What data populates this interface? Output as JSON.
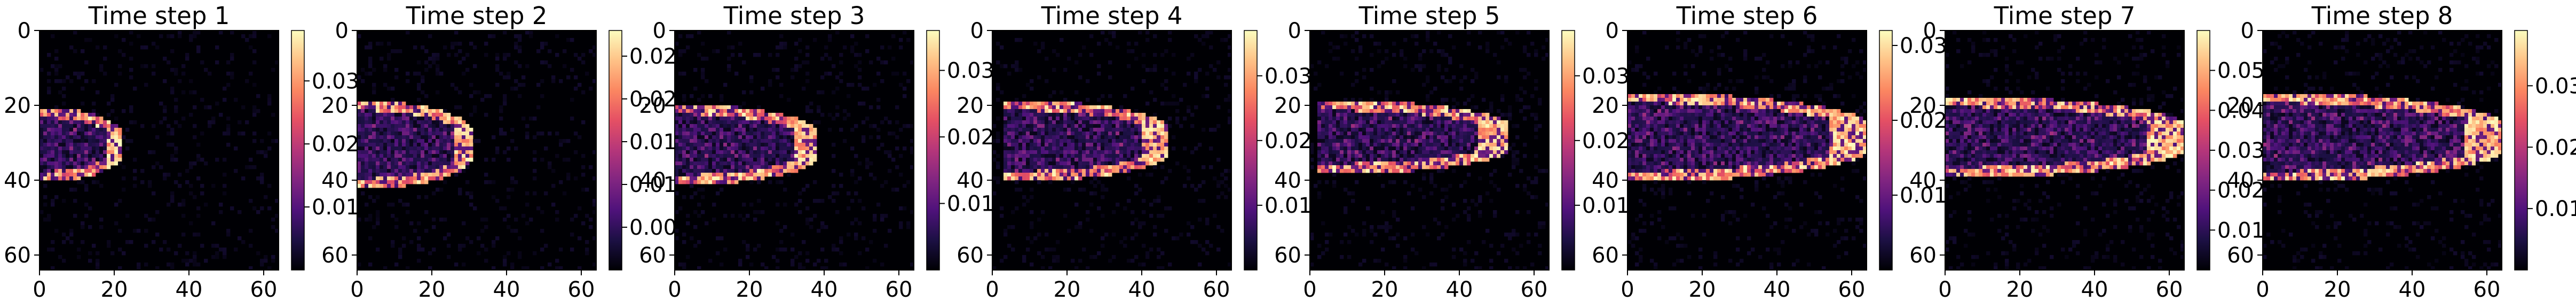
{
  "figure": {
    "panel_count": 8,
    "colormap": "magma",
    "background": "#ffffff"
  },
  "chart_data": [
    {
      "type": "heatmap",
      "title": "Time step 1",
      "xticks": [
        0,
        20,
        40,
        60
      ],
      "yticks": [
        0,
        20,
        40,
        60
      ],
      "xlim": [
        0,
        64
      ],
      "ylim": [
        64,
        0
      ],
      "colorbar": {
        "ticks": [
          "0.01",
          "0.02",
          "0.03"
        ],
        "values": [
          0.01,
          0.02,
          0.03
        ],
        "range": [
          0,
          0.038
        ]
      },
      "feature": {
        "head_x": 21,
        "tail_x": 0,
        "center_y": 30,
        "half_width": 8
      }
    },
    {
      "type": "heatmap",
      "title": "Time step 2",
      "xticks": [
        0,
        20,
        40,
        60
      ],
      "yticks": [
        0,
        20,
        40,
        60
      ],
      "xlim": [
        0,
        64
      ],
      "ylim": [
        64,
        0
      ],
      "colorbar": {
        "ticks": [
          "0.005",
          "0.010",
          "0.015",
          "0.020",
          "0.025"
        ],
        "values": [
          0.005,
          0.01,
          0.015,
          0.02,
          0.025
        ],
        "range": [
          0,
          0.028
        ]
      },
      "feature": {
        "head_x": 30,
        "tail_x": 0,
        "center_y": 30,
        "half_width": 10
      }
    },
    {
      "type": "heatmap",
      "title": "Time step 3",
      "xticks": [
        0,
        20,
        40,
        60
      ],
      "yticks": [
        0,
        20,
        40,
        60
      ],
      "xlim": [
        0,
        64
      ],
      "ylim": [
        64,
        0
      ],
      "colorbar": {
        "ticks": [
          "0.01",
          "0.02",
          "0.03"
        ],
        "values": [
          0.01,
          0.02,
          0.03
        ],
        "range": [
          0,
          0.036
        ]
      },
      "feature": {
        "head_x": 37,
        "tail_x": 0,
        "center_y": 30,
        "half_width": 9
      }
    },
    {
      "type": "heatmap",
      "title": "Time step 4",
      "xticks": [
        0,
        20,
        40,
        60
      ],
      "yticks": [
        0,
        20,
        40,
        60
      ],
      "xlim": [
        0,
        64
      ],
      "ylim": [
        64,
        0
      ],
      "colorbar": {
        "ticks": [
          "0.01",
          "0.02",
          "0.03"
        ],
        "values": [
          0.01,
          0.02,
          0.03
        ],
        "range": [
          0,
          0.037
        ]
      },
      "feature": {
        "head_x": 46,
        "tail_x": 5,
        "center_y": 29,
        "half_width": 9
      }
    },
    {
      "type": "heatmap",
      "title": "Time step 5",
      "xticks": [
        0,
        20,
        40,
        60
      ],
      "yticks": [
        0,
        20,
        40,
        60
      ],
      "xlim": [
        0,
        64
      ],
      "ylim": [
        64,
        0
      ],
      "colorbar": {
        "ticks": [
          "0.01",
          "0.02",
          "0.03"
        ],
        "values": [
          0.01,
          0.02,
          0.03
        ],
        "range": [
          0,
          0.037
        ]
      },
      "feature": {
        "head_x": 52,
        "tail_x": 4,
        "center_y": 28,
        "half_width": 8
      }
    },
    {
      "type": "heatmap",
      "title": "Time step 6",
      "xticks": [
        0,
        20,
        40,
        60
      ],
      "yticks": [
        0,
        20,
        40,
        60
      ],
      "xlim": [
        0,
        64
      ],
      "ylim": [
        64,
        0
      ],
      "colorbar": {
        "ticks": [
          "0.01",
          "0.02",
          "0.03"
        ],
        "values": [
          0.01,
          0.02,
          0.03
        ],
        "range": [
          0,
          0.032
        ]
      },
      "feature": {
        "head_x": 63,
        "tail_x": 0,
        "center_y": 28,
        "half_width": 10
      }
    },
    {
      "type": "heatmap",
      "title": "Time step 7",
      "xticks": [
        0,
        20,
        40,
        60
      ],
      "yticks": [
        0,
        20,
        40,
        60
      ],
      "xlim": [
        0,
        64
      ],
      "ylim": [
        64,
        0
      ],
      "colorbar": {
        "ticks": [
          "0.01",
          "0.02",
          "0.03",
          "0.04",
          "0.05"
        ],
        "values": [
          0.01,
          0.02,
          0.03,
          0.04,
          0.05
        ],
        "range": [
          0,
          0.06
        ]
      },
      "feature": {
        "head_x": 63,
        "tail_x": 0,
        "center_y": 28,
        "half_width": 9
      }
    },
    {
      "type": "heatmap",
      "title": "Time step 8",
      "xticks": [
        0,
        20,
        40,
        60
      ],
      "yticks": [
        0,
        20,
        40,
        60
      ],
      "xlim": [
        0,
        64
      ],
      "ylim": [
        64,
        0
      ],
      "colorbar": {
        "ticks": [
          "0.01",
          "0.02",
          "0.03"
        ],
        "values": [
          0.01,
          0.02,
          0.03
        ],
        "range": [
          0,
          0.039
        ]
      },
      "feature": {
        "head_x": 63,
        "tail_x": 0,
        "center_y": 28,
        "half_width": 10
      }
    }
  ]
}
